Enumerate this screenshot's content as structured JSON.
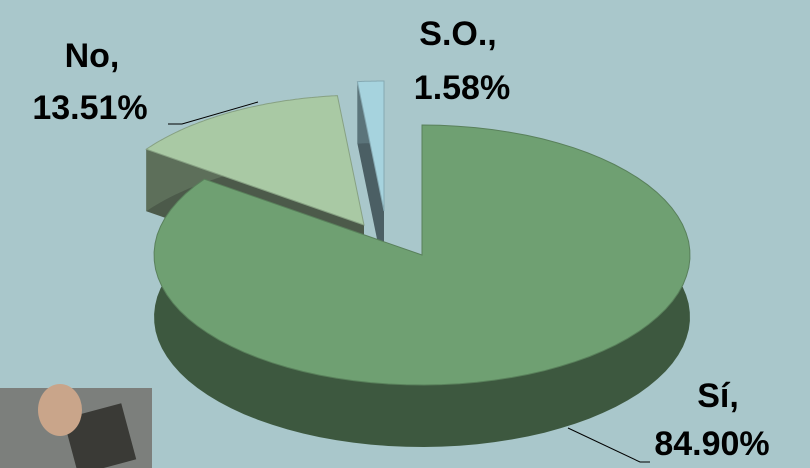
{
  "chart_data": {
    "type": "pie3d",
    "categories": [
      "Sí,",
      "No,",
      "S.O.,"
    ],
    "values": [
      84.9,
      13.51,
      1.58
    ],
    "value_labels": [
      "84.90%",
      "13.51%",
      "1.58%"
    ],
    "colors": [
      "#6fa072",
      "#a9c9a4",
      "#a6d3de"
    ]
  }
}
